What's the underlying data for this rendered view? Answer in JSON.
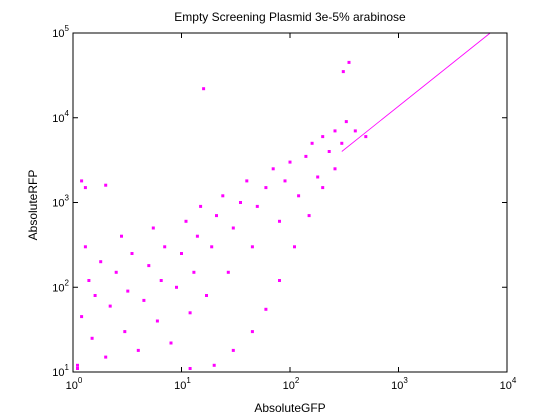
{
  "chart_data": {
    "type": "scatter",
    "title": "Empty Screening Plasmid 3e-5% arabinose",
    "xlabel": "AbsoluteGFP",
    "ylabel": "AbsoluteRFP",
    "x_scale": "log",
    "y_scale": "log",
    "xlim": [
      1,
      10000
    ],
    "ylim": [
      10,
      100000
    ],
    "grid": false,
    "x_ticks": [
      {
        "base": "10",
        "exp": "0",
        "value": 1
      },
      {
        "base": "10",
        "exp": "1",
        "value": 10
      },
      {
        "base": "10",
        "exp": "2",
        "value": 100
      },
      {
        "base": "10",
        "exp": "3",
        "value": 1000
      },
      {
        "base": "10",
        "exp": "4",
        "value": 10000
      }
    ],
    "y_ticks": [
      {
        "base": "10",
        "exp": "1",
        "value": 10
      },
      {
        "base": "10",
        "exp": "2",
        "value": 100
      },
      {
        "base": "10",
        "exp": "3",
        "value": 1000
      },
      {
        "base": "10",
        "exp": "4",
        "value": 10000
      },
      {
        "base": "10",
        "exp": "5",
        "value": 100000
      }
    ],
    "marker_color": "#ff00ff",
    "fit_line": {
      "color": "#ff00ff",
      "x": [
        300,
        7000
      ],
      "y": [
        4000,
        100000
      ]
    },
    "points": [
      [
        1.1,
        12
      ],
      [
        1.2,
        45
      ],
      [
        1.4,
        120
      ],
      [
        1.3,
        300
      ],
      [
        1.5,
        25
      ],
      [
        1.6,
        80
      ],
      [
        1.8,
        200
      ],
      [
        2.0,
        15
      ],
      [
        2.2,
        60
      ],
      [
        2.5,
        150
      ],
      [
        2.8,
        400
      ],
      [
        3.0,
        30
      ],
      [
        3.2,
        90
      ],
      [
        3.5,
        250
      ],
      [
        4.0,
        18
      ],
      [
        4.5,
        70
      ],
      [
        5.0,
        180
      ],
      [
        5.5,
        500
      ],
      [
        6.0,
        40
      ],
      [
        6.5,
        120
      ],
      [
        7.0,
        300
      ],
      [
        8.0,
        22
      ],
      [
        9.0,
        100
      ],
      [
        10,
        250
      ],
      [
        11,
        600
      ],
      [
        12,
        50
      ],
      [
        13,
        150
      ],
      [
        14,
        400
      ],
      [
        15,
        900
      ],
      [
        17,
        80
      ],
      [
        19,
        300
      ],
      [
        21,
        700
      ],
      [
        24,
        1200
      ],
      [
        27,
        150
      ],
      [
        30,
        500
      ],
      [
        35,
        1000
      ],
      [
        40,
        1800
      ],
      [
        45,
        300
      ],
      [
        50,
        900
      ],
      [
        60,
        1500
      ],
      [
        70,
        2500
      ],
      [
        80,
        600
      ],
      [
        90,
        1800
      ],
      [
        100,
        3000
      ],
      [
        120,
        1200
      ],
      [
        140,
        3500
      ],
      [
        160,
        5000
      ],
      [
        180,
        2000
      ],
      [
        200,
        6000
      ],
      [
        230,
        4000
      ],
      [
        260,
        7000
      ],
      [
        300,
        5000
      ],
      [
        330,
        9000
      ],
      [
        350,
        45000
      ],
      [
        310,
        35000
      ],
      [
        16,
        22000
      ],
      [
        1.2,
        1800
      ],
      [
        1.3,
        1500
      ],
      [
        2.0,
        1600
      ],
      [
        1.1,
        11
      ],
      [
        12,
        11
      ],
      [
        20,
        12
      ],
      [
        30,
        18
      ],
      [
        45,
        30
      ],
      [
        60,
        55
      ],
      [
        80,
        120
      ],
      [
        110,
        300
      ],
      [
        150,
        700
      ],
      [
        200,
        1500
      ],
      [
        260,
        2500
      ],
      [
        400,
        7000
      ],
      [
        500,
        6000
      ]
    ]
  }
}
